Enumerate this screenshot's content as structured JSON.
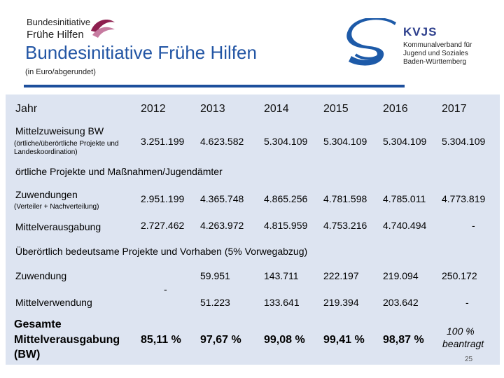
{
  "logo_left": {
    "line1": "Bundesinitiative",
    "line2": "Frühe Hilfen"
  },
  "title": "Bundesinitiative Frühe Hilfen",
  "subtitle": "(in Euro/abgerundet)",
  "kvjs": {
    "name": "KVJS",
    "line1": "Kommunalverband für",
    "line2": "Jugend und Soziales",
    "line3": "Baden-Württemberg"
  },
  "colors": {
    "accent": "#1d4f9c",
    "table_bg": "#dde4f1"
  },
  "table": {
    "header": {
      "label": "Jahr",
      "years": [
        "2012",
        "2013",
        "2014",
        "2015",
        "2016",
        "2017"
      ]
    },
    "mittelzuweisung": {
      "label": "Mittelzuweisung BW",
      "sublabel": "(örtliche/überörtliche Projekte und Landeskoordination)",
      "values": [
        "3.251.199",
        "4.623.582",
        "5.304.109",
        "5.304.109",
        "5.304.109",
        "5.304.109"
      ]
    },
    "section1": "örtliche Projekte und Maßnahmen/Jugendämter",
    "zuwendungen": {
      "label": "Zuwendungen",
      "sublabel": "(Verteiler + Nachverteilung)",
      "values": [
        "2.951.199",
        "4.365.748",
        "4.865.256",
        "4.781.598",
        "4.785.011",
        "4.773.819"
      ]
    },
    "mittelverausgabung": {
      "label": "Mittelverausgabung",
      "values": [
        "2.727.462",
        "4.263.972",
        "4.815.959",
        "4.753.216",
        "4.740.494",
        "-"
      ]
    },
    "section2": "Überörtlich bedeutsame Projekte und Vorhaben (5% Vorwegabzug)",
    "zuwendung": {
      "label": "Zuwendung",
      "values": [
        "59.951",
        "143.711",
        "222.197",
        "219.094",
        "250.172"
      ]
    },
    "merged_2012": "-",
    "mittelverwendung": {
      "label": "Mittelverwendung",
      "values": [
        "51.223",
        "133.641",
        "219.394",
        "203.642",
        "-"
      ]
    },
    "gesamt": {
      "label_line1": "Gesamte",
      "label_line2": "Mittelverausgabung",
      "label_line3": "(BW)",
      "values": [
        "85,11 %",
        "97,67 %",
        "99,08 %",
        "99,41 %",
        "98,87 %"
      ],
      "note_line1": "100 %",
      "note_line2": "beantragt"
    }
  },
  "page_number": "25"
}
